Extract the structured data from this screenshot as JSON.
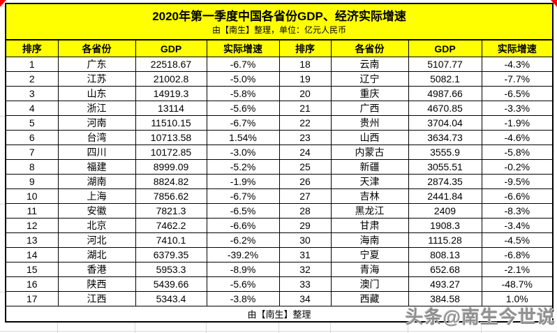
{
  "chart_data": {
    "type": "table",
    "title": "2020年第一季度中国各省份GDP、经济实际增速",
    "subtitle": "由【南生】整理，单位：亿元人民币",
    "footer": "由【南生】整理",
    "columns": [
      "排序",
      "各省份",
      "GDP",
      "实际增速",
      "排序",
      "各省份",
      "GDP",
      "实际增速"
    ],
    "rows_left": [
      [
        "1",
        "广东",
        "22518.67",
        "-6.7%"
      ],
      [
        "2",
        "江苏",
        "21002.8",
        "-5.0%"
      ],
      [
        "3",
        "山东",
        "14919.3",
        "-5.8%"
      ],
      [
        "4",
        "浙江",
        "13114",
        "-5.6%"
      ],
      [
        "5",
        "河南",
        "11510.15",
        "-6.7%"
      ],
      [
        "6",
        "台湾",
        "10713.58",
        "1.54%"
      ],
      [
        "7",
        "四川",
        "10172.85",
        "-3.0%"
      ],
      [
        "8",
        "福建",
        "8999.09",
        "-5.2%"
      ],
      [
        "9",
        "湖南",
        "8824.82",
        "-1.9%"
      ],
      [
        "10",
        "上海",
        "7856.62",
        "-6.7%"
      ],
      [
        "11",
        "安徽",
        "7821.3",
        "-6.5%"
      ],
      [
        "12",
        "北京",
        "7462.2",
        "-6.6%"
      ],
      [
        "13",
        "河北",
        "7410.1",
        "-6.2%"
      ],
      [
        "14",
        "湖北",
        "6379.35",
        "-39.2%"
      ],
      [
        "15",
        "香港",
        "5953.3",
        "-8.9%"
      ],
      [
        "16",
        "陕西",
        "5439.66",
        "-5.6%"
      ],
      [
        "17",
        "江西",
        "5343.4",
        "-3.8%"
      ]
    ],
    "rows_right": [
      [
        "18",
        "云南",
        "5107.77",
        "-4.3%"
      ],
      [
        "19",
        "辽宁",
        "5082.1",
        "-7.7%"
      ],
      [
        "20",
        "重庆",
        "4987.66",
        "-6.5%"
      ],
      [
        "21",
        "广西",
        "4670.85",
        "-3.3%"
      ],
      [
        "22",
        "贵州",
        "3704.04",
        "-1.9%"
      ],
      [
        "23",
        "山西",
        "3634.73",
        "-4.6%"
      ],
      [
        "24",
        "内蒙古",
        "3555.9",
        "-5.8%"
      ],
      [
        "25",
        "新疆",
        "3055.51",
        "-0.2%"
      ],
      [
        "26",
        "天津",
        "2874.35",
        "-9.5%"
      ],
      [
        "27",
        "吉林",
        "2441.84",
        "-6.6%"
      ],
      [
        "28",
        "黑龙江",
        "2409",
        "-8.3%"
      ],
      [
        "29",
        "甘肃",
        "1908.3",
        "-3.4%"
      ],
      [
        "30",
        "海南",
        "1115.28",
        "-4.5%"
      ],
      [
        "31",
        "宁夏",
        "808.13",
        "-6.8%"
      ],
      [
        "32",
        "青海",
        "652.68",
        "-2.1%"
      ],
      [
        "33",
        "澳门",
        "493.27",
        "-48.7%"
      ],
      [
        "34",
        "西藏",
        "384.58",
        "1.0%"
      ]
    ]
  },
  "watermark": "头条@南生今世说",
  "colors": {
    "header_bg": "#ffff00",
    "border": "#000000",
    "watermark_gray": "#8f8f8f",
    "corner_mark_red": "#ff0000"
  }
}
